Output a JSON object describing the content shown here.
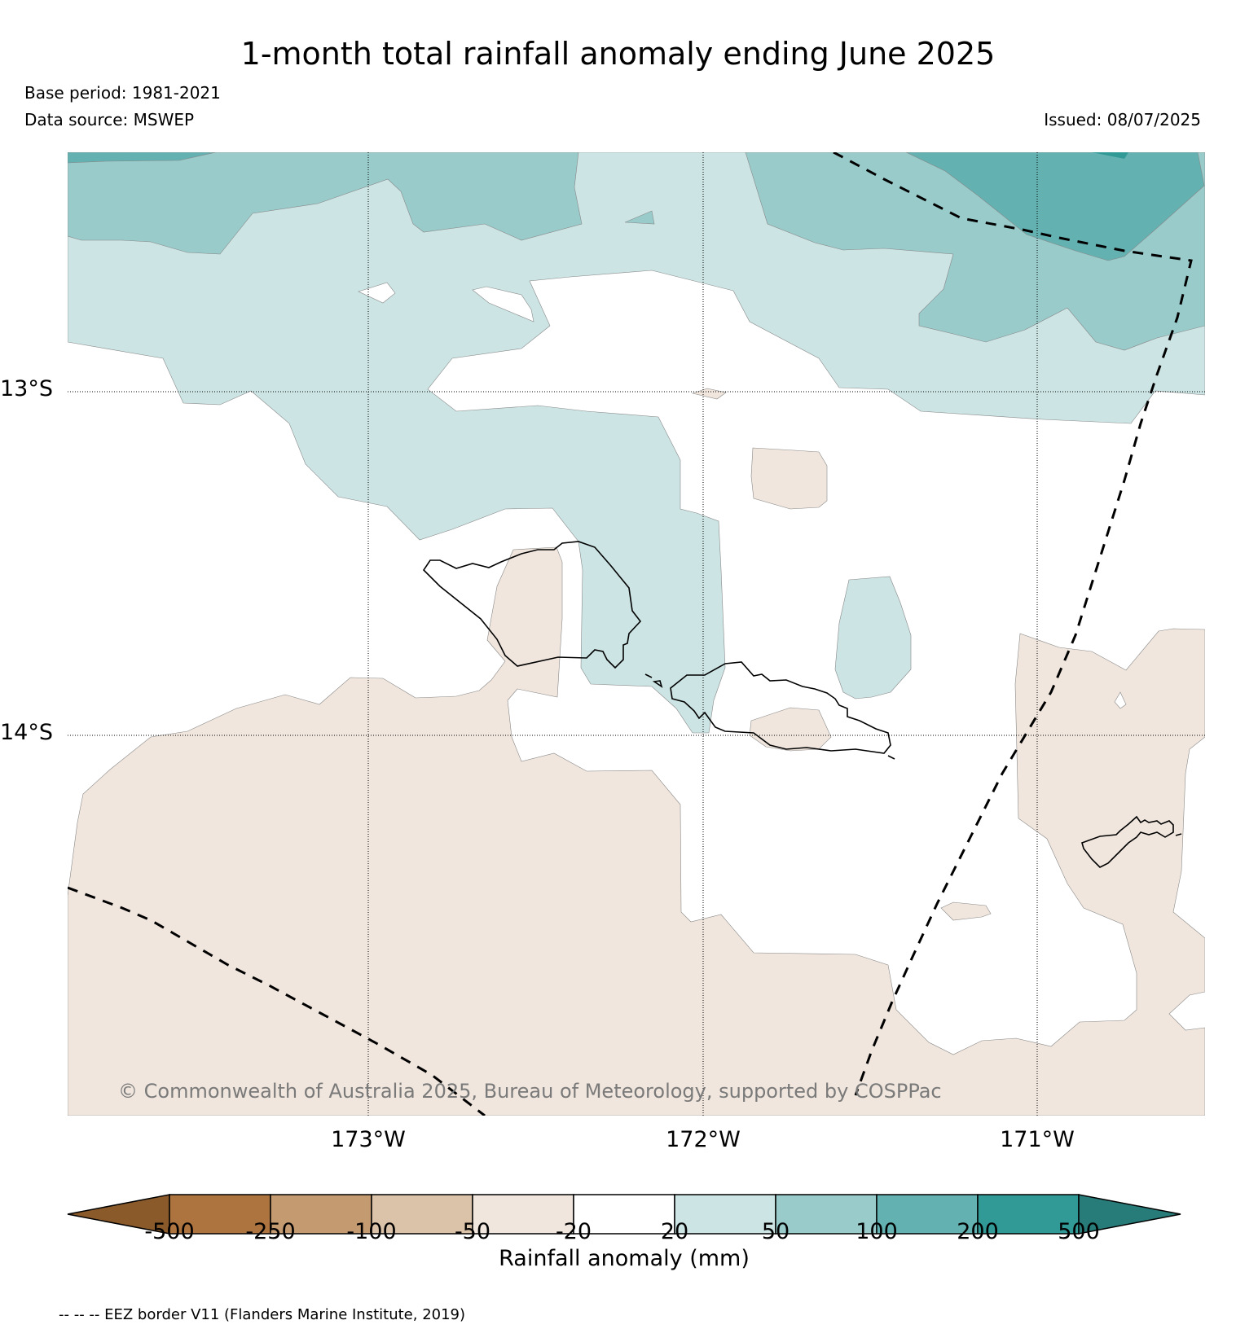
{
  "title": "1-month total rainfall anomaly ending June 2025",
  "base_period": "Base period: 1981-2021",
  "data_source": "Data source: MSWEP",
  "issued": "Issued: 08/07/2025",
  "copyright": "© Commonwealth of Australia 2025, Bureau of Meteorology, supported by COSPPac",
  "latitude_labels": [
    "13°S",
    "14°S"
  ],
  "longitude_labels": [
    "173°W",
    "172°W",
    "171°W"
  ],
  "colorbar": {
    "label": "Rainfall anomaly (mm)",
    "ticks": [
      "-500",
      "-250",
      "-100",
      "-50",
      "-20",
      "20",
      "50",
      "100",
      "200",
      "500"
    ],
    "colors": {
      "below_-500": "#8b5a2b",
      "-500_-250": "#ad7440",
      "-250_-100": "#c49a71",
      "-100_-50": "#dbc3aa",
      "-50_-20": "#f0e6dd",
      "-20_20": "#ffffff",
      "20_50": "#cce4e4",
      "50_100": "#99cbcb",
      "100_200": "#64b1b1",
      "200_500": "#329a96",
      "above_500": "#277b78"
    }
  },
  "footnote": "-- -- -- EEZ border V11 (Flanders Marine Institute, 2019)"
}
